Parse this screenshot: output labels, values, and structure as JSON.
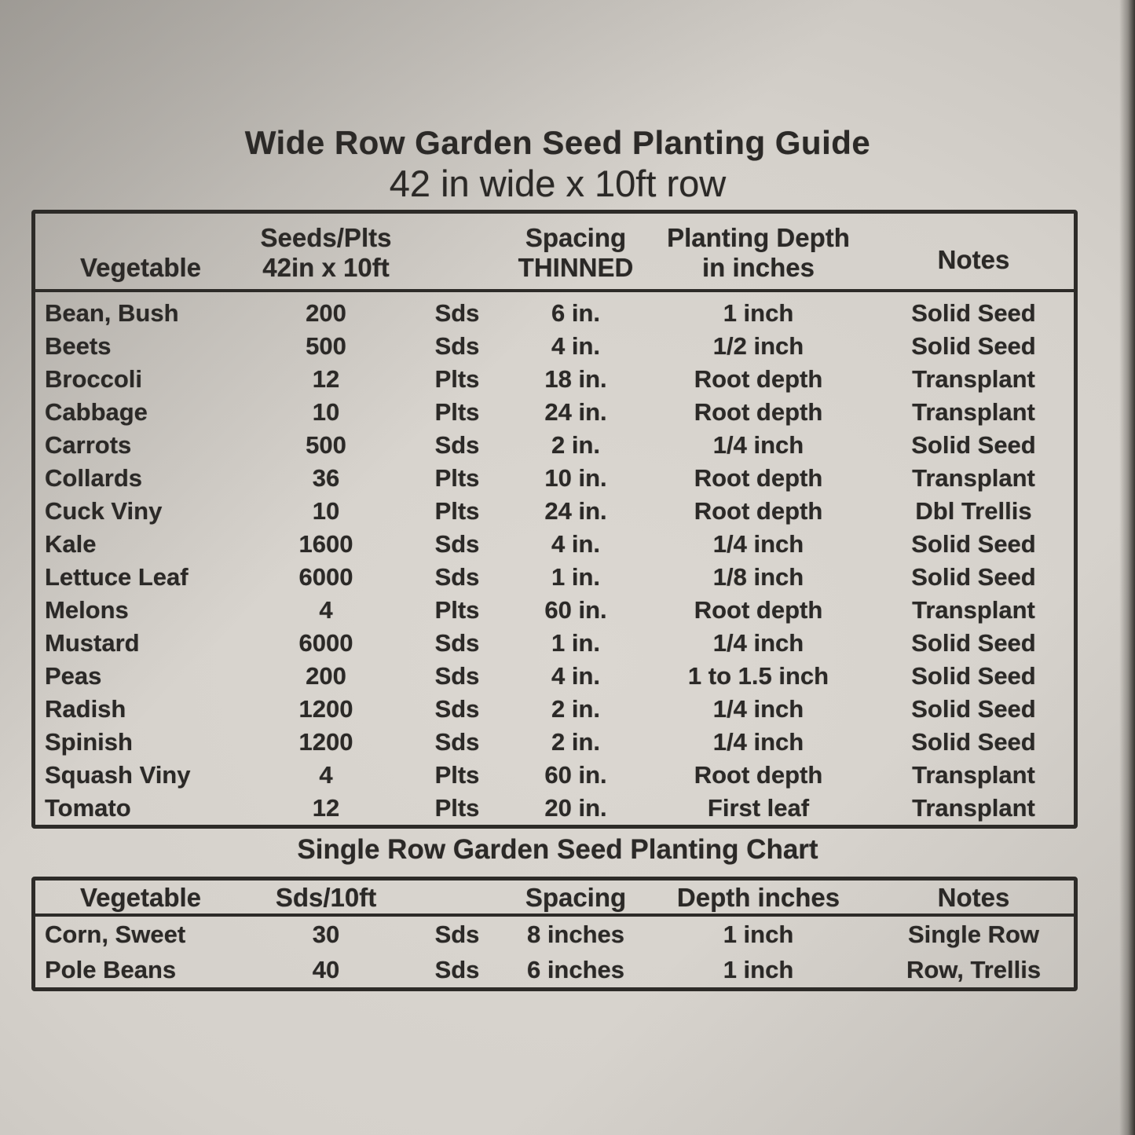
{
  "colors": {
    "ink": "#2b2927",
    "paper": "#d5d1cb",
    "paper_edge": "#3e3c38"
  },
  "heading": {
    "title": "Wide Row Garden Seed Planting Guide",
    "subtitle": "42 in wide x 10ft row"
  },
  "wide_row_table": {
    "header": {
      "vegetable": "Vegetable",
      "seeds_line1": "Seeds/Plts",
      "seeds_line2": "42in x 10ft",
      "spacing_line1": "Spacing",
      "spacing_line2": "THINNED",
      "depth_line1": "Planting Depth",
      "depth_line2": "in inches",
      "notes": "Notes"
    },
    "rows": [
      [
        "Bean, Bush",
        "200",
        "Sds",
        "6 in.",
        "1 inch",
        "Solid Seed"
      ],
      [
        "Beets",
        "500",
        "Sds",
        "4 in.",
        "1/2 inch",
        "Solid Seed"
      ],
      [
        "Broccoli",
        "12",
        "Plts",
        "18 in.",
        "Root depth",
        "Transplant"
      ],
      [
        "Cabbage",
        "10",
        "Plts",
        "24 in.",
        "Root depth",
        "Transplant"
      ],
      [
        "Carrots",
        "500",
        "Sds",
        "2 in.",
        "1/4 inch",
        "Solid Seed"
      ],
      [
        "Collards",
        "36",
        "Plts",
        "10 in.",
        "Root depth",
        "Transplant"
      ],
      [
        "Cuck  Viny",
        "10",
        "Plts",
        "24 in.",
        "Root depth",
        "Dbl Trellis"
      ],
      [
        "Kale",
        "1600",
        "Sds",
        "4 in.",
        "1/4 inch",
        "Solid Seed"
      ],
      [
        "Lettuce Leaf",
        "6000",
        "Sds",
        "1 in.",
        "1/8 inch",
        "Solid Seed"
      ],
      [
        "Melons",
        "4",
        "Plts",
        "60 in.",
        "Root depth",
        "Transplant"
      ],
      [
        "Mustard",
        "6000",
        "Sds",
        "1 in.",
        "1/4 inch",
        "Solid Seed"
      ],
      [
        "Peas",
        "200",
        "Sds",
        "4 in.",
        "1 to 1.5 inch",
        "Solid Seed"
      ],
      [
        "Radish",
        "1200",
        "Sds",
        "2 in.",
        "1/4 inch",
        "Solid Seed"
      ],
      [
        "Spinish",
        "1200",
        "Sds",
        "2 in.",
        "1/4 inch",
        "Solid Seed"
      ],
      [
        "Squash Viny",
        "4",
        "Plts",
        "60 in.",
        "Root depth",
        "Transplant"
      ],
      [
        "Tomato",
        "12",
        "Plts",
        "20 in.",
        "First leaf",
        "Transplant"
      ]
    ]
  },
  "single_row_table": {
    "title": "Single Row Garden Seed Planting Chart",
    "header": {
      "vegetable": "Vegetable",
      "seeds": "Sds/10ft",
      "spacing": "Spacing",
      "depth": "Depth inches",
      "notes": "Notes"
    },
    "rows": [
      [
        "Corn, Sweet",
        "30",
        "Sds",
        "8 inches",
        "1 inch",
        "Single Row"
      ],
      [
        "Pole Beans",
        "40",
        "Sds",
        "6 inches",
        "1 inch",
        "Row, Trellis"
      ]
    ]
  }
}
